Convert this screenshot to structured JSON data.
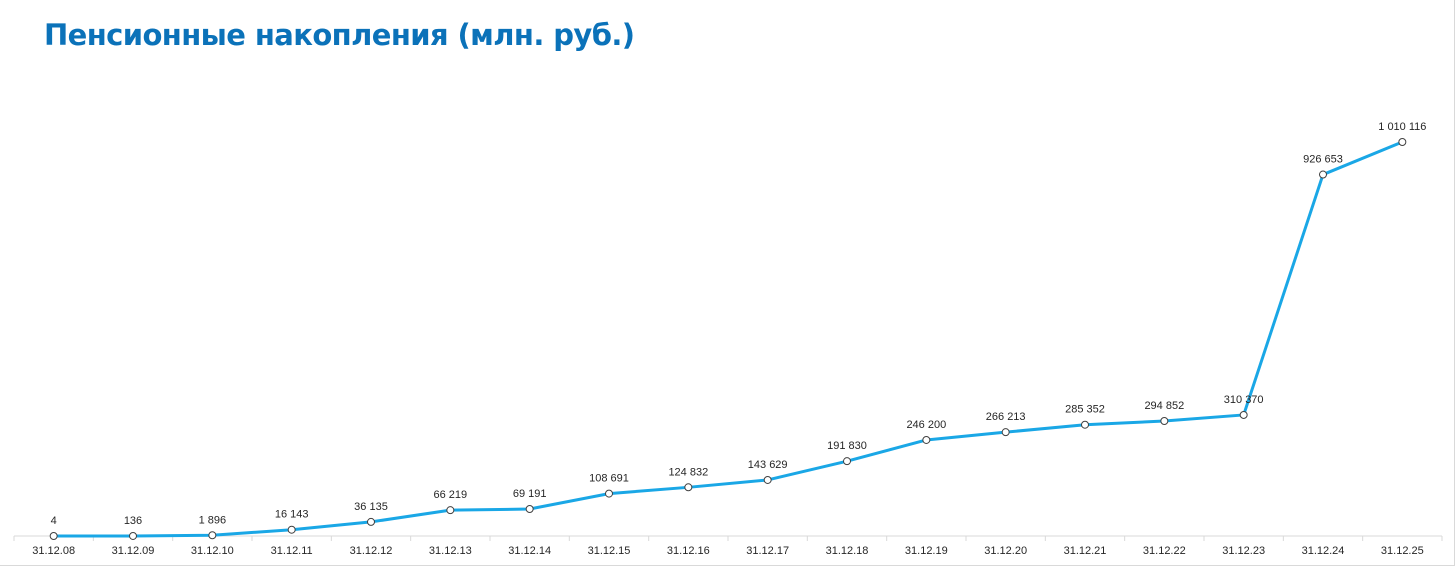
{
  "chart_data": {
    "type": "line",
    "title": "Пенсионные накопления (млн. руб.)",
    "categories": [
      "31.12.08",
      "31.12.09",
      "31.12.10",
      "31.12.11",
      "31.12.12",
      "31.12.13",
      "31.12.14",
      "31.12.15",
      "31.12.16",
      "31.12.17",
      "31.12.18",
      "31.12.19",
      "31.12.20",
      "31.12.21",
      "31.12.22",
      "31.12.23",
      "31.12.24",
      "31.12.25"
    ],
    "values": [
      4,
      136,
      1896,
      16143,
      36135,
      66219,
      69191,
      108691,
      124832,
      143629,
      191830,
      246200,
      266213,
      285352,
      294852,
      310370,
      926653,
      1010116
    ],
    "value_labels": [
      "4",
      "136",
      "1 896",
      "16 143",
      "36 135",
      "66 219",
      "69 191",
      "108 691",
      "124 832",
      "143 629",
      "191 830",
      "246 200",
      "266 213",
      "285 352",
      "294 852",
      "310 370",
      "926 653",
      "1 010 116"
    ],
    "xlabel": "",
    "ylabel": "",
    "grid": false,
    "legend": "none",
    "colors": {
      "line": "#1aa7e6",
      "marker_fill": "#ffffff",
      "marker_stroke": "#404040",
      "title": "#0b72b9",
      "axis": "#d9d9d9"
    }
  }
}
